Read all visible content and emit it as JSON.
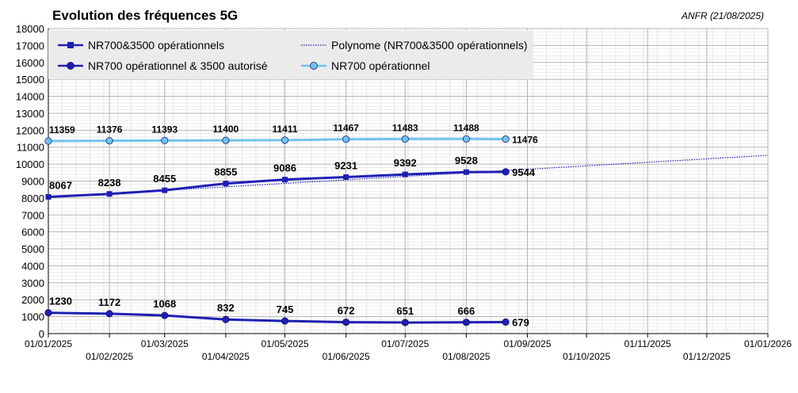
{
  "chart_data": {
    "type": "line",
    "title": "Evolution des fréquences 5G",
    "source_note": "ANFR (21/08/2025)",
    "ylim": [
      0,
      18000
    ],
    "ytick_step": 1000,
    "x_ticks": [
      "01/01/2025",
      "01/02/2025",
      "01/03/2025",
      "01/04/2025",
      "01/05/2025",
      "01/06/2025",
      "01/07/2025",
      "01/08/2025",
      "01/09/2025",
      "01/10/2025",
      "01/11/2025",
      "01/12/2025",
      "01/01/2026"
    ],
    "x": [
      "01/01/2025",
      "01/02/2025",
      "01/03/2025",
      "01/04/2025",
      "01/05/2025",
      "01/06/2025",
      "01/07/2025",
      "01/08/2025",
      "21/08/2025"
    ],
    "grid": true,
    "legend_position": "top-left",
    "series": [
      {
        "name": "NR700&3500 opérationnels",
        "color": "#1f1fb4",
        "marker": "square",
        "values": [
          8067,
          8238,
          8455,
          8855,
          9086,
          9231,
          9392,
          9528,
          9544
        ]
      },
      {
        "name": "NR700 opérationnel & 3500 autorisé",
        "color": "#1f1fb4",
        "marker": "circle",
        "values": [
          1230,
          1172,
          1068,
          832,
          745,
          672,
          651,
          666,
          679
        ]
      },
      {
        "name": "NR700 opérationnel",
        "color": "#6ec3f0",
        "marker": "circle",
        "values": [
          11359,
          11376,
          11393,
          11400,
          11411,
          11467,
          11483,
          11488,
          11476
        ]
      },
      {
        "name": "Polynome (NR700&3500 opérationnels)",
        "color": "#1f1fb4",
        "style": "dotted",
        "x": [
          "01/01/2025",
          "01/01/2026"
        ],
        "values": [
          8050,
          10520
        ]
      }
    ]
  }
}
